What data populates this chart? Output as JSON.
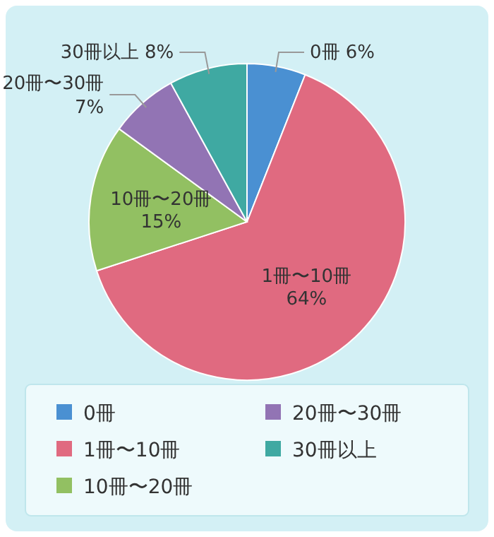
{
  "chart_data": {
    "type": "pie",
    "categories": [
      "0冊",
      "1冊〜10冊",
      "10冊〜20冊",
      "20冊〜30冊",
      "30冊以上"
    ],
    "values": [
      6,
      64,
      15,
      7,
      8
    ],
    "value_labels": [
      "6%",
      "64%",
      "15%",
      "7%",
      "8%"
    ],
    "colors": [
      "#4a90d2",
      "#e06a80",
      "#92c062",
      "#9274b4",
      "#3fa9a2"
    ],
    "legend": "bottom"
  }
}
